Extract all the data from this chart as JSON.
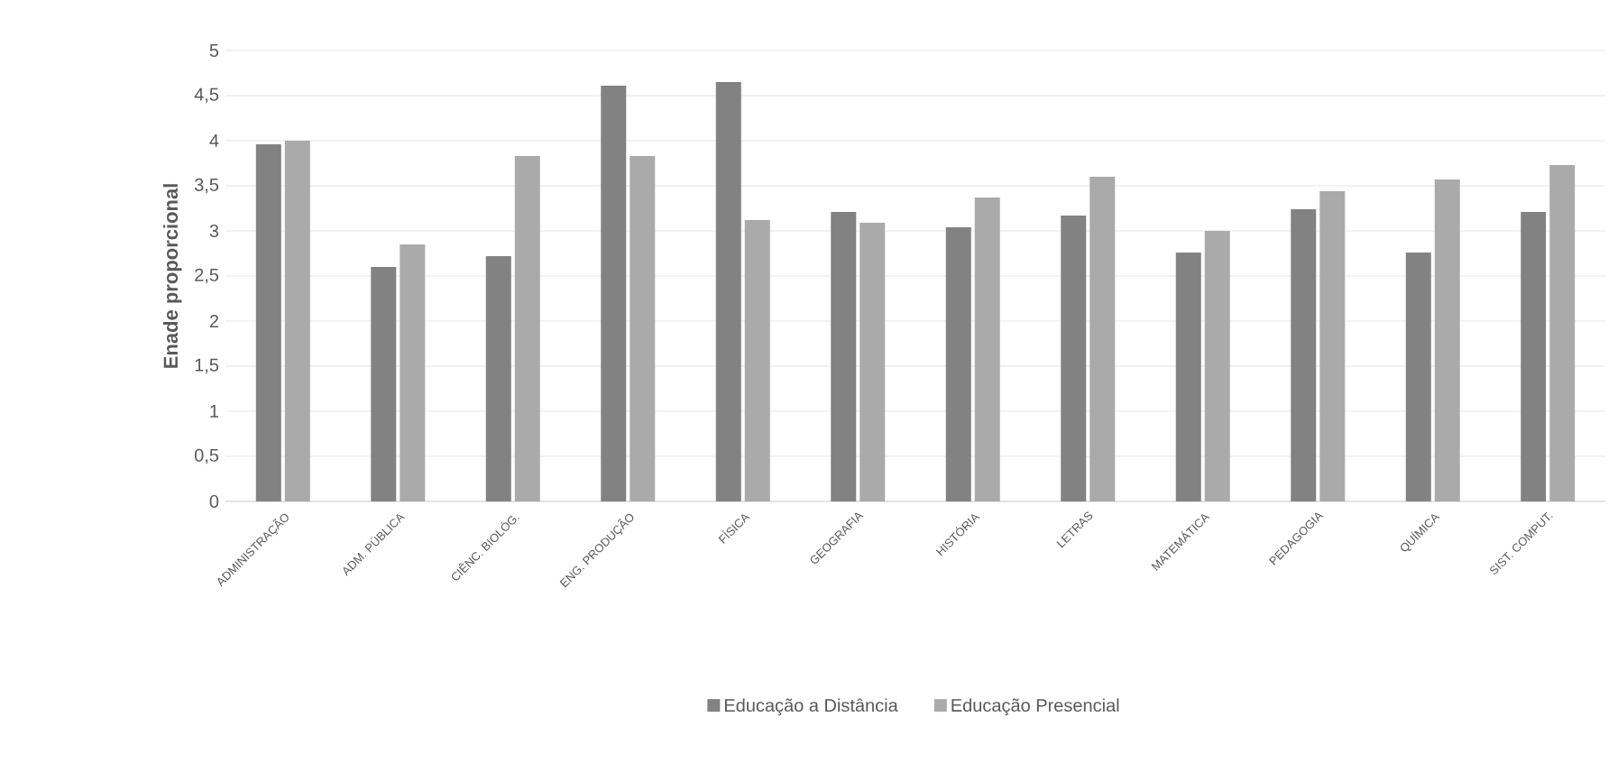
{
  "chart_data": {
    "type": "bar",
    "ylabel": "Enade proporcional",
    "categories": [
      "ADMINISTRAÇÃO",
      "ADM. PÚBLICA",
      "CIÊNC. BIOLÓG.",
      "ENG. PRODUÇÃO",
      "FÍSICA",
      "GEOGRAFIA",
      "HISTÓRIA",
      "LETRAS",
      "MATEMÁTICA",
      "PEDAGOGIA",
      "QUÍMICA",
      "SIST. COMPUT."
    ],
    "series": [
      {
        "name": "Educação a Distância",
        "color": "#828282",
        "values": [
          3.96,
          2.6,
          2.72,
          4.61,
          4.65,
          3.21,
          3.04,
          3.17,
          2.76,
          3.24,
          2.76,
          3.21
        ]
      },
      {
        "name": "Educação Presencial",
        "color": "#aaaaaa",
        "values": [
          4.0,
          2.85,
          3.83,
          3.83,
          3.12,
          3.09,
          3.37,
          3.6,
          3.0,
          3.44,
          3.57,
          3.73
        ]
      }
    ],
    "ylim": [
      0,
      5
    ],
    "yticks": [
      {
        "value": 0,
        "label": "0"
      },
      {
        "value": 0.5,
        "label": "0,5"
      },
      {
        "value": 1,
        "label": "1"
      },
      {
        "value": 1.5,
        "label": "1,5"
      },
      {
        "value": 2,
        "label": "2"
      },
      {
        "value": 2.5,
        "label": "2,5"
      },
      {
        "value": 3,
        "label": "3"
      },
      {
        "value": 3.5,
        "label": "3,5"
      },
      {
        "value": 4,
        "label": "4"
      },
      {
        "value": 4.5,
        "label": "4,5"
      },
      {
        "value": 5,
        "label": "5"
      }
    ],
    "grid": "y",
    "legend": "bottom"
  }
}
